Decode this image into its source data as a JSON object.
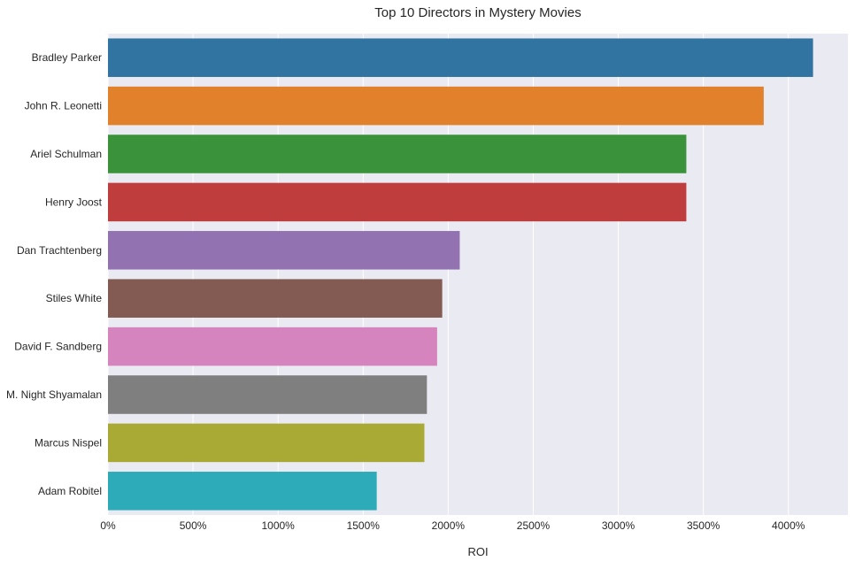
{
  "chart_data": {
    "type": "bar",
    "orientation": "horizontal",
    "title": "Top 10 Directors in Mystery Movies",
    "xlabel": "ROI",
    "ylabel": "",
    "xlim": [
      0,
      4350
    ],
    "x_ticks": [
      0,
      500,
      1000,
      1500,
      2000,
      2500,
      3000,
      3500,
      4000
    ],
    "x_tick_suffix": "%",
    "grid": true,
    "categories": [
      "Bradley Parker",
      "John R. Leonetti",
      "Ariel Schulman",
      "Henry Joost",
      "Dan Trachtenberg",
      "Stiles White",
      "David F. Sandberg",
      "M. Night Shyamalan",
      "Marcus Nispel",
      "Adam Robitel"
    ],
    "values": [
      4145,
      3855,
      3400,
      3400,
      2068,
      1965,
      1935,
      1875,
      1860,
      1580
    ],
    "colors": [
      "#3274a1",
      "#e1812c",
      "#3a923a",
      "#c03d3e",
      "#9372b2",
      "#845b53",
      "#d684bd",
      "#7f7f7f",
      "#a9aa35",
      "#2eabb8"
    ],
    "background": "#eaeaf2",
    "grid_color": "#ffffff"
  }
}
